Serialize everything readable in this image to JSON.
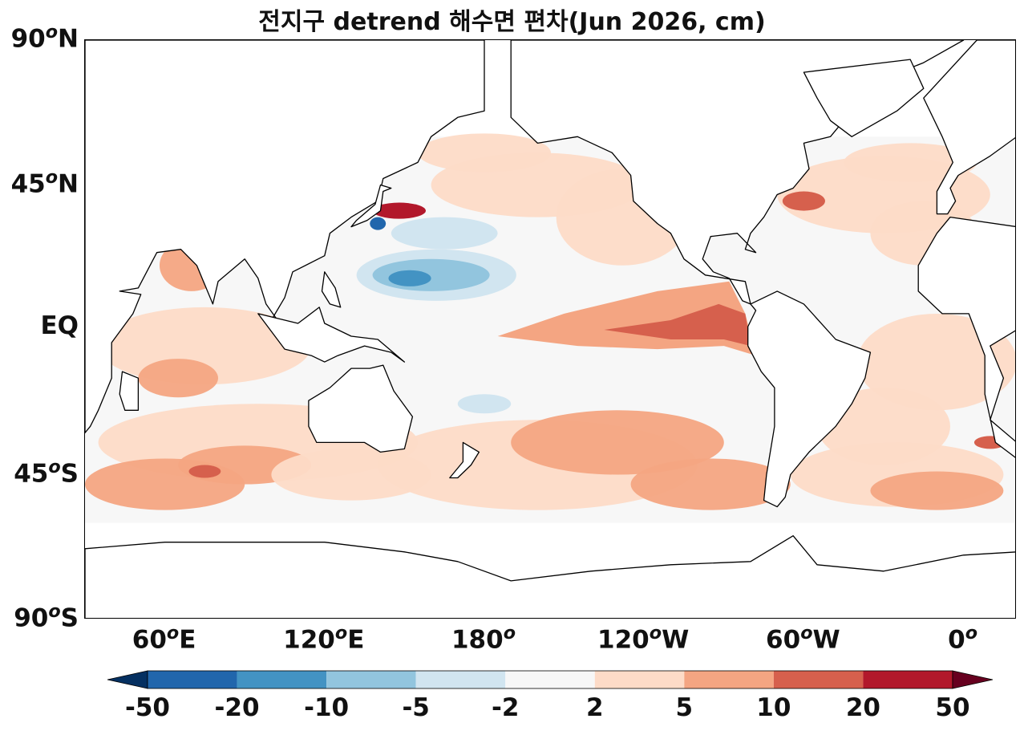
{
  "title": "전지구 detrend 해수면 편차(Jun 2026, cm)",
  "y_axis": {
    "ticks": [
      {
        "lat": 90,
        "num": "90",
        "deg": "o",
        "hem": "N"
      },
      {
        "lat": 45,
        "num": "45",
        "deg": "o",
        "hem": "N"
      },
      {
        "lat": 0,
        "num": "EQ",
        "deg": "",
        "hem": ""
      },
      {
        "lat": -45,
        "num": "45",
        "deg": "o",
        "hem": "S"
      },
      {
        "lat": -90,
        "num": "90",
        "deg": "o",
        "hem": "S"
      }
    ]
  },
  "x_axis": {
    "ticks": [
      {
        "lon": 60,
        "num": "60",
        "deg": "o",
        "hem": "E"
      },
      {
        "lon": 120,
        "num": "120",
        "deg": "o",
        "hem": "E"
      },
      {
        "lon": 180,
        "num": "180",
        "deg": "o",
        "hem": ""
      },
      {
        "lon": 240,
        "num": "120",
        "deg": "o",
        "hem": "W"
      },
      {
        "lon": 300,
        "num": "60",
        "deg": "o",
        "hem": "W"
      },
      {
        "lon": 360,
        "num": "0",
        "deg": "o",
        "hem": ""
      }
    ]
  },
  "colorbar": {
    "levels": [
      "-50",
      "-20",
      "-10",
      "-5",
      "-2",
      "2",
      "5",
      "10",
      "20",
      "50"
    ],
    "colors": [
      "#2166ac",
      "#4393c3",
      "#92c5de",
      "#d1e5f0",
      "#f7f7f7",
      "#fddbc7",
      "#f4a582",
      "#d6604d",
      "#b2182b"
    ],
    "under_color": "#053061",
    "over_color": "#67001f"
  },
  "chart_data": {
    "type": "heatmap",
    "variable": "detrend sea level anomaly",
    "unit": "cm",
    "period": "Jun 2026",
    "lon_range": [
      30,
      380
    ],
    "lat_range": [
      -90,
      90
    ],
    "data_coverage_lat": [
      -60,
      60
    ],
    "features": [
      {
        "region": "Eastern equatorial Pacific",
        "anomaly_range_cm": [
          10,
          20
        ]
      },
      {
        "region": "Central equatorial Pacific",
        "anomaly_range_cm": [
          5,
          10
        ]
      },
      {
        "region": "Western tropical North Pacific (10-25N)",
        "anomaly_range_cm": [
          -20,
          -5
        ]
      },
      {
        "region": "Kuroshio extension (~35N)",
        "anomaly_range_cm": [
          20,
          50
        ]
      },
      {
        "region": "Gulf Stream (~40N)",
        "anomaly_range_cm": [
          10,
          20
        ]
      },
      {
        "region": "Southern Ocean (40-55S)",
        "anomaly_range_cm": [
          5,
          10
        ]
      },
      {
        "region": "Indian Ocean",
        "anomaly_range_cm": [
          2,
          10
        ]
      },
      {
        "region": "North Atlantic",
        "anomaly_range_cm": [
          2,
          10
        ]
      }
    ]
  }
}
